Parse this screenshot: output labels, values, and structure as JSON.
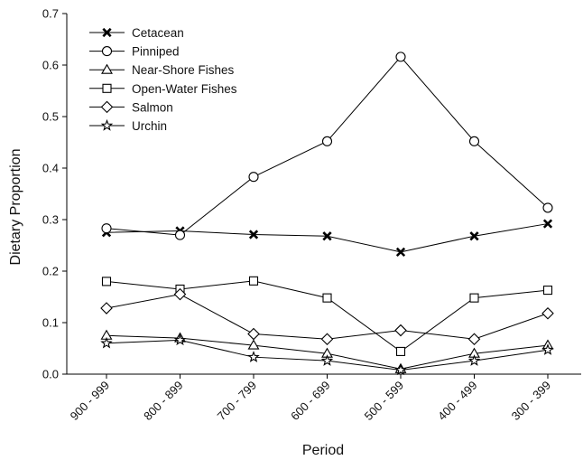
{
  "chart_data": {
    "type": "line",
    "xlabel": "Period",
    "ylabel": "Dietary Proportion",
    "categories": [
      "900 - 999",
      "800 - 899",
      "700 - 799",
      "600 - 699",
      "500 - 599",
      "400 - 499",
      "300 - 399"
    ],
    "ylim": [
      0,
      0.7
    ],
    "yticks": [
      "0.0",
      "0.1",
      "0.2",
      "0.3",
      "0.4",
      "0.5",
      "0.6",
      "0.7"
    ],
    "grid": false,
    "legend_position": "top-left",
    "series": [
      {
        "name": "Cetacean",
        "marker": "x-cross",
        "values": [
          0.275,
          0.278,
          0.271,
          0.268,
          0.237,
          0.268,
          0.292
        ]
      },
      {
        "name": "Pinniped",
        "marker": "circle",
        "values": [
          0.283,
          0.27,
          0.383,
          0.452,
          0.616,
          0.452,
          0.323
        ]
      },
      {
        "name": "Near-Shore Fishes",
        "marker": "triangle",
        "values": [
          0.075,
          0.07,
          0.056,
          0.04,
          0.01,
          0.04,
          0.056
        ]
      },
      {
        "name": "Open-Water Fishes",
        "marker": "square",
        "values": [
          0.18,
          0.165,
          0.181,
          0.148,
          0.044,
          0.148,
          0.163
        ]
      },
      {
        "name": "Salmon",
        "marker": "diamond",
        "values": [
          0.128,
          0.155,
          0.078,
          0.068,
          0.085,
          0.068,
          0.118
        ]
      },
      {
        "name": "Urchin",
        "marker": "star",
        "values": [
          0.06,
          0.066,
          0.033,
          0.026,
          0.008,
          0.026,
          0.047
        ]
      }
    ]
  }
}
